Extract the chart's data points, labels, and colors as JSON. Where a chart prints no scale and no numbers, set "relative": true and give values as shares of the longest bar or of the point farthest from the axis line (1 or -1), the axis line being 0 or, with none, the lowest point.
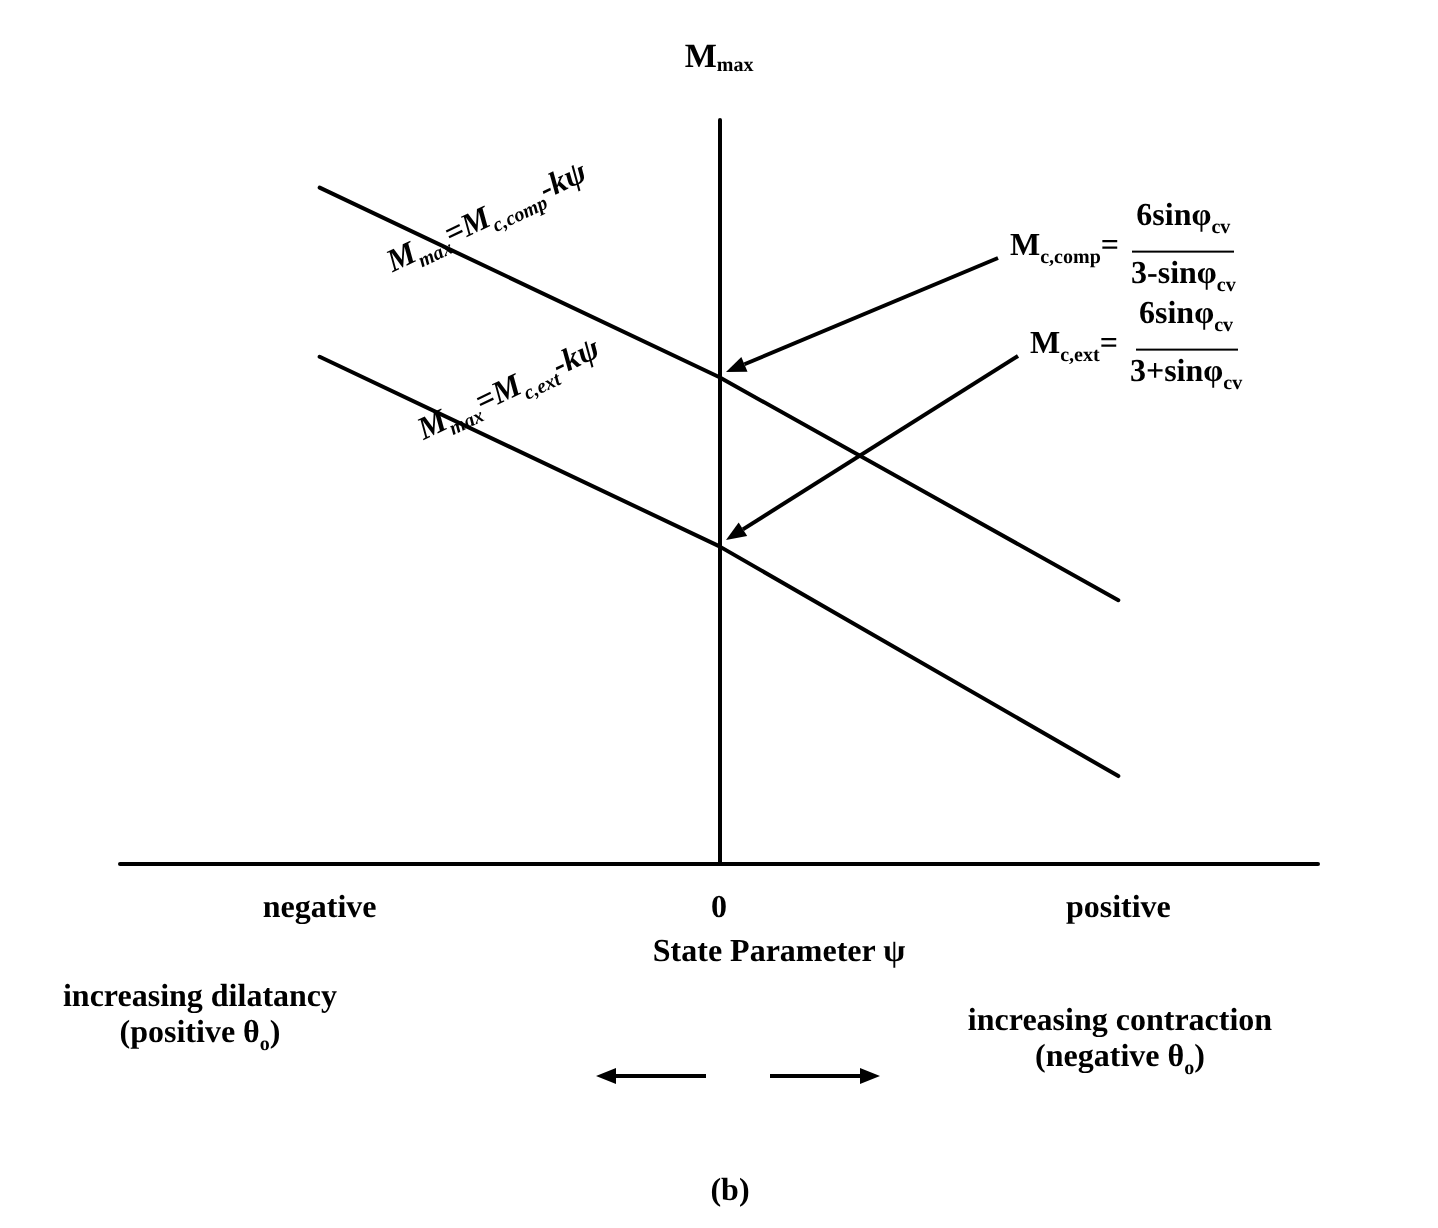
{
  "chart_data": {
    "type": "line",
    "relative": true,
    "xlabel": "State Parameter ψ",
    "ylabel": "M$_{max}$",
    "categories": [
      "negative",
      "0",
      "positive"
    ],
    "tick_labels": "x",
    "line_style": "solid",
    "series": [
      {
        "color": "#000000",
        "values": [
          1,
          0.72,
          0.39
        ]
      },
      {
        "color": "#000000",
        "values": [
          0.75,
          0.47,
          0.13
        ]
      }
    ],
    "annotations": [
      "M$_{max}$=M$_{c,comp}$-kψ",
      "M$_{max}$=M$_{c,ext}$-kψ",
      "M$_{c,comp}$=6sinφ$_{cv}$\n3-sinφ$_{cv}$",
      "M$_{c,ext}$=6sinφ$_{cv}$\n3+sinφ$_{cv}$",
      "increasing dilatancy\n(positive θ$_{o}$)",
      "increasing contraction\n(negative θ$_{o}$)",
      "(b)"
    ]
  }
}
